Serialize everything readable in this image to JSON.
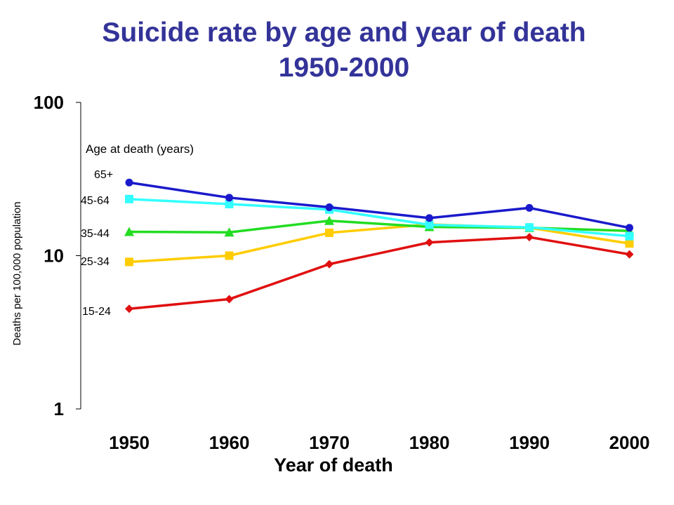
{
  "chart_data": {
    "type": "line",
    "title": "Suicide rate by age and year of death",
    "subtitle": "1950-2000",
    "xlabel": "Year of death",
    "ylabel": "Deaths per 100,000 population",
    "yscale": "log",
    "ylim": [
      1,
      100
    ],
    "yticks": [
      "1",
      "10",
      "100"
    ],
    "categories": [
      "1950",
      "1960",
      "1970",
      "1980",
      "1990",
      "2000"
    ],
    "legend_title": "Age at death (years)",
    "series": [
      {
        "name": "65+",
        "color": "#1a1acc",
        "marker": "circle",
        "values": [
          30.0,
          23.9,
          20.7,
          17.6,
          20.5,
          15.2
        ]
      },
      {
        "name": "45-64",
        "color": "#33ffff",
        "marker": "square",
        "values": [
          23.4,
          21.7,
          20.0,
          15.9,
          15.3,
          13.4
        ]
      },
      {
        "name": "35-44",
        "color": "#22dd22",
        "marker": "triangle",
        "values": [
          14.3,
          14.2,
          16.9,
          15.4,
          15.2,
          14.5
        ]
      },
      {
        "name": "25-34",
        "color": "#ffcc00",
        "marker": "square",
        "values": [
          9.1,
          10.0,
          14.1,
          16.0,
          15.2,
          12.0
        ]
      },
      {
        "name": "15-24",
        "color": "#e01010",
        "marker": "diamond",
        "values": [
          4.5,
          5.2,
          8.8,
          12.2,
          13.2,
          10.2
        ]
      }
    ]
  }
}
